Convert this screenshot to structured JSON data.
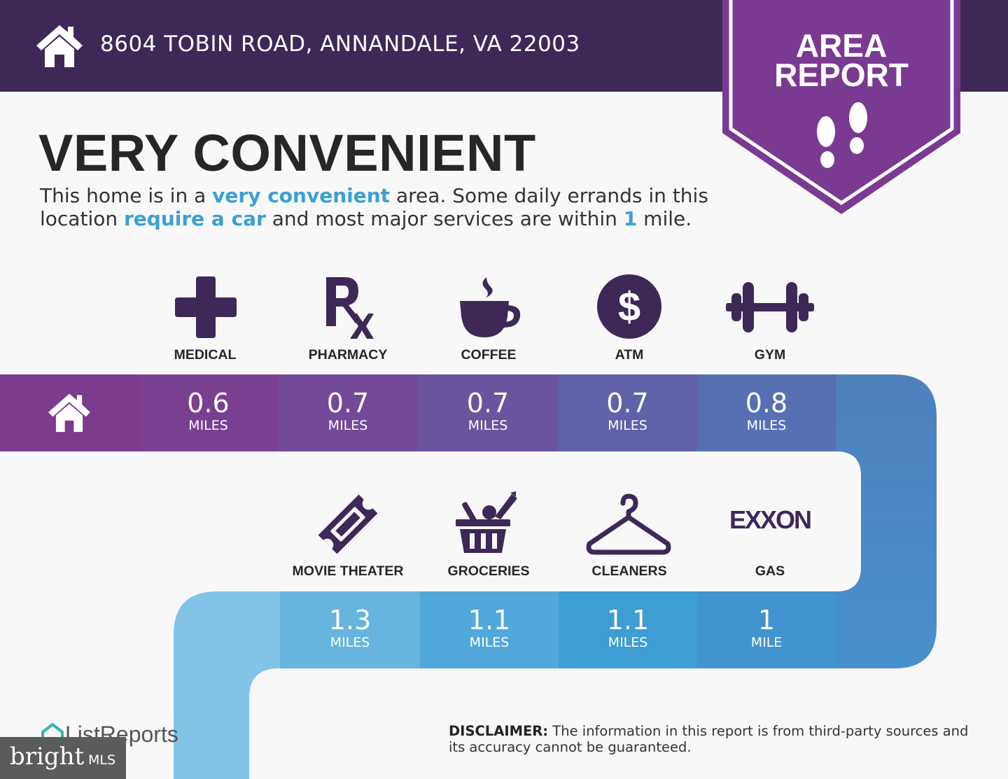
{
  "header": {
    "address": "8604 TOBIN ROAD, ANNANDALE, VA 22003",
    "home_icon": "house-icon"
  },
  "banner": {
    "line1": "AREA",
    "line2": "REPORT",
    "icon": "footprints-icon"
  },
  "heading": "VERY CONVENIENT",
  "description": {
    "p1": "This home is in a ",
    "h1": "very convenient",
    "p2": " area. Some daily errands in this location ",
    "h2": "require a car",
    "p3": " and most major services are within ",
    "h3": "1",
    "p4": " mile."
  },
  "row1": [
    {
      "label": "MEDICAL",
      "distance": "0.6",
      "unit": "MILES",
      "icon": "medical-cross-icon",
      "color": "#7d3b8d"
    },
    {
      "label": "PHARMACY",
      "distance": "0.7",
      "unit": "MILES",
      "icon": "pharmacy-rx-icon",
      "color": "#754694"
    },
    {
      "label": "COFFEE",
      "distance": "0.7",
      "unit": "MILES",
      "icon": "coffee-cup-icon",
      "color": "#6b549d"
    },
    {
      "label": "ATM",
      "distance": "0.7",
      "unit": "MILES",
      "icon": "dollar-icon",
      "color": "#6262a6"
    },
    {
      "label": "GYM",
      "distance": "0.8",
      "unit": "MILES",
      "icon": "dumbbell-icon",
      "color": "#5772b2"
    }
  ],
  "row2": [
    {
      "label": "MOVIE THEATER",
      "distance": "1.3",
      "unit": "MILES",
      "icon": "ticket-icon",
      "color": "#67b4de"
    },
    {
      "label": "GROCERIES",
      "distance": "1.1",
      "unit": "MILES",
      "icon": "grocery-basket-icon",
      "color": "#53a8da"
    },
    {
      "label": "CLEANERS",
      "distance": "1.1",
      "unit": "MILES",
      "icon": "hanger-icon",
      "color": "#3e9dd2"
    },
    {
      "label": "GAS",
      "distance": "1",
      "unit": "MILE",
      "icon": "exxon-logo",
      "logo_text": "EXXON",
      "color": "#4390cb"
    }
  ],
  "footer": {
    "disclaimer_label": "DISCLAIMER:",
    "disclaimer_text": " The information in this report is from third-party sources and its accuracy cannot be guaranteed.",
    "listreports": "ListReports",
    "bright_main": "bright",
    "bright_sub": "MLS"
  },
  "colors": {
    "header_bg": "#3d2858",
    "banner": "#7b3a92",
    "accent_blue": "#3aa0d3"
  }
}
